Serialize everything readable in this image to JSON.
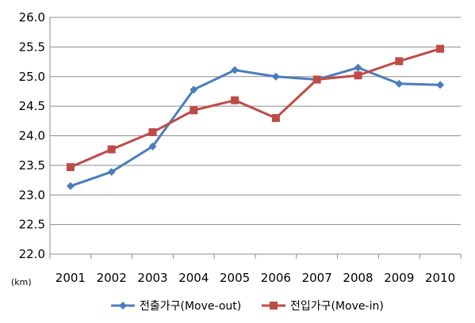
{
  "chart_data": {
    "type": "line",
    "title": "",
    "xlabel": "",
    "ylabel": "",
    "y_unit": "(km)",
    "categories": [
      "2001",
      "2002",
      "2003",
      "2004",
      "2005",
      "2006",
      "2007",
      "2008",
      "2009",
      "2010"
    ],
    "ylim": [
      22.0,
      26.0
    ],
    "yticks": [
      "22.0",
      "22.5",
      "23.0",
      "23.5",
      "24.0",
      "24.5",
      "25.0",
      "25.5",
      "26.0"
    ],
    "grid": true,
    "legend_position": "bottom",
    "series": [
      {
        "name": "전출가구(Move-out)",
        "color": "#4a7ebb",
        "marker": "diamond",
        "values": [
          23.15,
          23.39,
          23.82,
          24.78,
          25.11,
          25.0,
          24.95,
          25.15,
          24.88,
          24.86
        ]
      },
      {
        "name": "전입가구(Move-in)",
        "color": "#be4b48",
        "marker": "square",
        "values": [
          23.47,
          23.77,
          24.06,
          24.43,
          24.6,
          24.3,
          24.95,
          25.02,
          25.26,
          25.47
        ]
      }
    ]
  }
}
